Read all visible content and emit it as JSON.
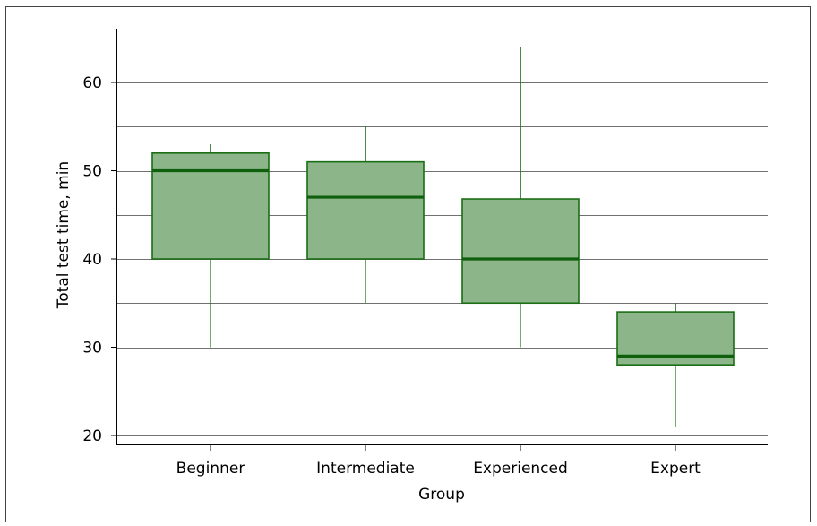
{
  "chart_data": {
    "type": "box",
    "title": "",
    "xlabel": "Group",
    "ylabel": "Total test time, min",
    "categories": [
      "Beginner",
      "Intermediate",
      "Experienced",
      "Expert"
    ],
    "boxes": [
      {
        "category": "Beginner",
        "whisker_low": 30,
        "q1": 40,
        "median": 50,
        "q3": 52,
        "whisker_high": 53
      },
      {
        "category": "Intermediate",
        "whisker_low": 35,
        "q1": 40,
        "median": 47,
        "q3": 51,
        "whisker_high": 55
      },
      {
        "category": "Experienced",
        "whisker_low": 30,
        "q1": 35,
        "median": 40,
        "q3": 46.8,
        "whisker_high": 64
      },
      {
        "category": "Expert",
        "whisker_low": 21,
        "q1": 28,
        "median": 29,
        "q3": 34,
        "whisker_high": 35
      }
    ],
    "ylim": [
      19,
      66
    ],
    "yticks": [
      20,
      30,
      40,
      50,
      60
    ],
    "gridlines": [
      20,
      25,
      30,
      35,
      40,
      45,
      50,
      55,
      60
    ],
    "grid": true,
    "legend": "none",
    "colors": {
      "box_fill": "#8cb68a",
      "box_stroke": "#1a6e14",
      "median": "#0f5f0c",
      "grid": "#707070",
      "axis": "#000000",
      "frame": "#444444"
    }
  }
}
